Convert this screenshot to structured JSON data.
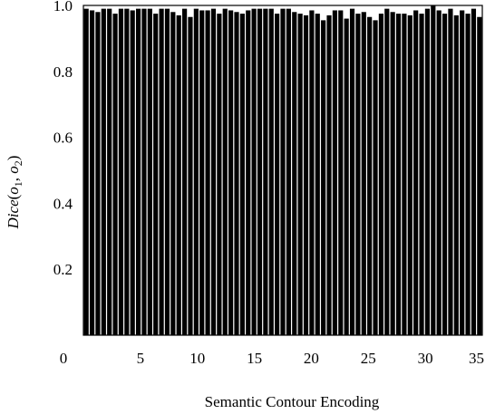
{
  "chart_data": {
    "type": "bar",
    "xlabel": "Semantic Contour Encoding",
    "ylabel": "Dice(o1, o2)",
    "ylabel_parts": {
      "main": "Dice",
      "open": "(",
      "o": "o",
      "sub1": "1",
      "comma": ", ",
      "sub2": "2",
      "close": ")"
    },
    "ylim": [
      0,
      1.0
    ],
    "yticks": [
      "1.0",
      "0.8",
      "0.6",
      "0.4",
      "0.2"
    ],
    "ytick_values": [
      1.0,
      0.8,
      0.6,
      0.4,
      0.2
    ],
    "xtick_labels": [
      "0",
      "5",
      "10",
      "15",
      "20",
      "25",
      "30",
      "35"
    ],
    "xtick_values": [
      0,
      5,
      10,
      15,
      20,
      25,
      30,
      35
    ],
    "bar_color": "#000000",
    "grid": false,
    "x": [
      0.5,
      1.0,
      1.5,
      2.0,
      2.5,
      3.0,
      3.5,
      4.0,
      4.5,
      5.0,
      5.5,
      6.0,
      6.5,
      7.0,
      7.5,
      8.0,
      8.5,
      9.0,
      9.5,
      10.0,
      10.5,
      11.0,
      11.5,
      12.0,
      12.5,
      13.0,
      13.5,
      14.0,
      14.5,
      15.0,
      15.5,
      16.0,
      16.5,
      17.0,
      17.5,
      18.0,
      18.5,
      19.0,
      19.5,
      20.0,
      20.5,
      21.0,
      21.5,
      22.0,
      22.5,
      23.0,
      23.5,
      24.0,
      24.5,
      25.0,
      25.5,
      26.0,
      26.5,
      27.0,
      27.5,
      28.0,
      28.5,
      29.0,
      29.5,
      30.0,
      30.5,
      31.0,
      31.5,
      32.0,
      32.5,
      33.0,
      33.5,
      34.0,
      34.5
    ],
    "values": [
      0.99,
      0.985,
      0.98,
      0.99,
      0.99,
      0.975,
      0.99,
      0.99,
      0.985,
      0.99,
      0.99,
      0.99,
      0.975,
      0.99,
      0.99,
      0.98,
      0.97,
      0.99,
      0.965,
      0.99,
      0.985,
      0.985,
      0.99,
      0.975,
      0.99,
      0.985,
      0.98,
      0.975,
      0.985,
      0.99,
      0.99,
      0.99,
      0.99,
      0.975,
      0.99,
      0.99,
      0.98,
      0.975,
      0.97,
      0.985,
      0.975,
      0.955,
      0.97,
      0.985,
      0.985,
      0.96,
      0.99,
      0.975,
      0.98,
      0.965,
      0.955,
      0.975,
      0.99,
      0.98,
      0.975,
      0.975,
      0.97,
      0.985,
      0.975,
      0.99,
      1.0,
      0.985,
      0.975,
      0.99,
      0.97,
      0.985,
      0.975,
      0.99,
      0.965
    ]
  }
}
